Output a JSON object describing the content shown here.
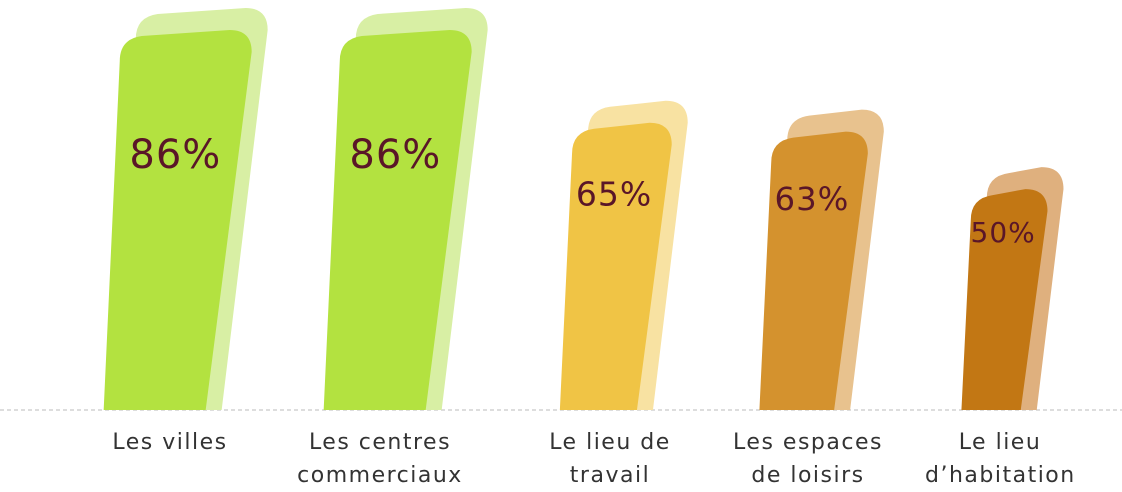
{
  "chart_data": {
    "type": "bar",
    "categories": [
      "Les villes",
      "Les centres commerciaux",
      "Le lieu de travail",
      "Les espaces de loisirs",
      "Le lieu d’habitation"
    ],
    "values": [
      86,
      86,
      65,
      63,
      50
    ],
    "value_labels": [
      "86%",
      "86%",
      "65%",
      "63%",
      "50%"
    ],
    "colors": [
      "#b3e240",
      "#b3e240",
      "#f0c445",
      "#d4922e",
      "#c27714"
    ],
    "shadow_colors": [
      "#d8efa4",
      "#d8efa4",
      "#f8e2a2",
      "#e8c28e",
      "#dfb07e"
    ],
    "label_color": "#5a1628"
  }
}
